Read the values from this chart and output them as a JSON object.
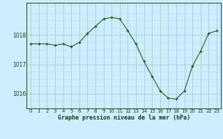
{
  "x": [
    0,
    1,
    2,
    3,
    4,
    5,
    6,
    7,
    8,
    9,
    10,
    11,
    12,
    13,
    14,
    15,
    16,
    17,
    18,
    19,
    20,
    21,
    22,
    23
  ],
  "y": [
    1017.7,
    1017.7,
    1017.7,
    1017.65,
    1017.7,
    1017.6,
    1017.75,
    1018.05,
    1018.3,
    1018.55,
    1018.6,
    1018.55,
    1018.15,
    1017.7,
    1017.1,
    1016.6,
    1016.1,
    1015.85,
    1015.82,
    1016.1,
    1016.95,
    1017.45,
    1018.05,
    1018.15
  ],
  "line_color": "#1a5c1a",
  "marker": "+",
  "marker_size": 3,
  "background_color": "#cceeff",
  "grid_major_color": "#aacccc",
  "grid_minor_color": "#bbdddd",
  "xlabel": "Graphe pression niveau de la mer (hPa)",
  "ylim": [
    1015.5,
    1019.1
  ],
  "yticks": [
    1016,
    1017,
    1018
  ],
  "xlim": [
    -0.5,
    23.5
  ],
  "xticks": [
    0,
    1,
    2,
    3,
    4,
    5,
    6,
    7,
    8,
    9,
    10,
    11,
    12,
    13,
    14,
    15,
    16,
    17,
    18,
    19,
    20,
    21,
    22,
    23
  ]
}
